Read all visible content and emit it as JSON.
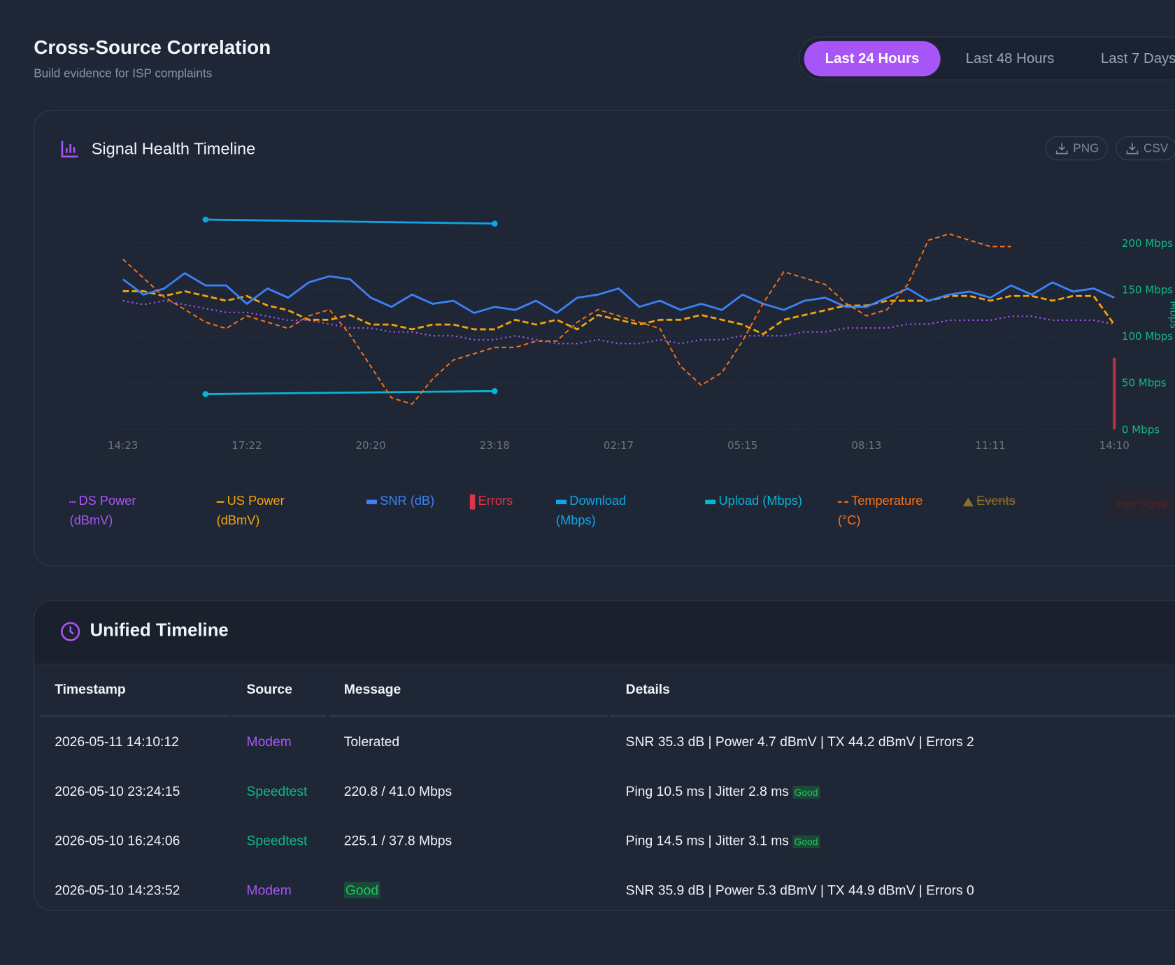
{
  "header": {
    "title": "Cross-Source Correlation",
    "subtitle": "Build evidence for ISP complaints"
  },
  "tabs": {
    "items": [
      "Last 24 Hours",
      "Last 48 Hours",
      "Last 7 Days"
    ],
    "active": 0
  },
  "chart_card": {
    "title": "Signal Health Timeline",
    "buttons": [
      "PNG",
      "CSV"
    ]
  },
  "chart_data": {
    "type": "line",
    "categories": [
      "14:23",
      null,
      null,
      null,
      null,
      null,
      "17:22",
      null,
      null,
      null,
      null,
      null,
      "20:20",
      null,
      null,
      null,
      null,
      null,
      "23:18",
      null,
      null,
      null,
      null,
      null,
      "02:17",
      null,
      null,
      null,
      null,
      null,
      "05:15",
      null,
      null,
      null,
      null,
      null,
      "08:13",
      null,
      null,
      null,
      null,
      null,
      "11:11",
      null,
      null,
      null,
      null,
      null,
      "14:10"
    ],
    "ylim": [
      0,
      230
    ],
    "yticks": [
      {
        "value": 0,
        "label": "0 Mbps"
      },
      {
        "value": 50,
        "label": "50 Mbps"
      },
      {
        "value": 100,
        "label": "100 Mbps"
      },
      {
        "value": 150,
        "label": "150 Mbps"
      },
      {
        "value": 200,
        "label": "200 Mbps"
      }
    ],
    "y_axis_side": "right",
    "y_label": "Mbps",
    "grid": true,
    "series": [
      {
        "name": "DS Power (dBmV)",
        "color": "#a855f7",
        "style": "dotted",
        "ylim": [
          2,
          7.5
        ],
        "values": [
          5.3,
          5.2,
          5.3,
          5.2,
          5.1,
          5.0,
          5.0,
          4.9,
          4.8,
          4.8,
          4.7,
          4.6,
          4.6,
          4.5,
          4.5,
          4.4,
          4.4,
          4.3,
          4.3,
          4.4,
          4.3,
          4.2,
          4.2,
          4.3,
          4.2,
          4.2,
          4.3,
          4.2,
          4.3,
          4.3,
          4.4,
          4.4,
          4.4,
          4.5,
          4.5,
          4.6,
          4.6,
          4.6,
          4.7,
          4.7,
          4.8,
          4.8,
          4.8,
          4.9,
          4.9,
          4.8,
          4.8,
          4.8,
          4.7
        ]
      },
      {
        "name": "US Power (dBmV)",
        "color": "#f5a30b",
        "style": "dashed",
        "ylim": [
          42,
          46.5
        ],
        "values": [
          44.9,
          44.9,
          44.8,
          44.9,
          44.8,
          44.7,
          44.8,
          44.6,
          44.5,
          44.3,
          44.3,
          44.4,
          44.2,
          44.2,
          44.1,
          44.2,
          44.2,
          44.1,
          44.1,
          44.3,
          44.2,
          44.3,
          44.1,
          44.4,
          44.3,
          44.2,
          44.3,
          44.3,
          44.4,
          44.3,
          44.2,
          44.0,
          44.3,
          44.4,
          44.5,
          44.6,
          44.6,
          44.7,
          44.7,
          44.7,
          44.8,
          44.8,
          44.7,
          44.8,
          44.8,
          44.7,
          44.8,
          44.8,
          44.2
        ]
      },
      {
        "name": "SNR (dB)",
        "color": "#3b82f6",
        "style": "solid",
        "ylim": [
          31,
          38
        ],
        "values": [
          35.9,
          35.4,
          35.6,
          36.1,
          35.7,
          35.7,
          35.1,
          35.6,
          35.3,
          35.8,
          36.0,
          35.9,
          35.3,
          35.0,
          35.4,
          35.1,
          35.2,
          34.8,
          35.0,
          34.9,
          35.2,
          34.8,
          35.3,
          35.4,
          35.6,
          35.0,
          35.2,
          34.9,
          35.1,
          34.9,
          35.4,
          35.1,
          34.9,
          35.2,
          35.3,
          35.0,
          35.0,
          35.3,
          35.6,
          35.2,
          35.4,
          35.5,
          35.3,
          35.7,
          35.4,
          35.8,
          35.5,
          35.6,
          35.3
        ]
      },
      {
        "name": "Errors",
        "color": "#dc3545",
        "style": "bar",
        "ylim": [
          0,
          6
        ],
        "values": [
          0,
          null,
          null,
          null,
          null,
          null,
          null,
          null,
          null,
          null,
          null,
          null,
          null,
          null,
          null,
          null,
          null,
          null,
          null,
          null,
          null,
          null,
          null,
          null,
          null,
          null,
          null,
          null,
          null,
          null,
          null,
          null,
          null,
          null,
          null,
          null,
          null,
          null,
          null,
          null,
          null,
          null,
          null,
          null,
          null,
          null,
          null,
          null,
          2
        ]
      },
      {
        "name": "Download (Mbps)",
        "color": "#0ea5e9",
        "style": "points",
        "axis": "y",
        "span_gaps": true,
        "values": [
          null,
          null,
          null,
          null,
          225.1,
          null,
          null,
          null,
          null,
          null,
          null,
          null,
          null,
          null,
          null,
          null,
          null,
          null,
          220.8,
          null,
          null,
          null,
          null,
          null,
          null,
          null,
          null,
          null,
          null,
          null,
          null,
          null,
          null,
          null,
          null,
          null,
          null,
          null,
          null,
          null,
          null,
          null,
          null,
          null,
          null,
          null,
          null,
          null,
          null
        ]
      },
      {
        "name": "Upload (Mbps)",
        "color": "#06b6d4",
        "style": "points",
        "axis": "y",
        "span_gaps": true,
        "values": [
          null,
          null,
          null,
          null,
          37.8,
          null,
          null,
          null,
          null,
          null,
          null,
          null,
          null,
          null,
          null,
          null,
          null,
          null,
          41.0,
          null,
          null,
          null,
          null,
          null,
          null,
          null,
          null,
          null,
          null,
          null,
          null,
          null,
          null,
          null,
          null,
          null,
          null,
          null,
          null,
          null,
          null,
          null,
          null,
          null,
          null,
          null,
          null,
          null,
          null
        ]
      },
      {
        "name": "Temperature (°C)",
        "color": "#f97316",
        "style": "dashed-thin",
        "ylim": [
          28,
          62
        ],
        "values": [
          55,
          52,
          49,
          47,
          45,
          44,
          46,
          45,
          44,
          46,
          47,
          43,
          38,
          33,
          32,
          36,
          39,
          40,
          41,
          41,
          42,
          42,
          45,
          47,
          46,
          45,
          44,
          38,
          35,
          37,
          42,
          48,
          53,
          52,
          51,
          48,
          46,
          47,
          51,
          58,
          59,
          58,
          57,
          57,
          null,
          null,
          null,
          null,
          null
        ]
      }
    ],
    "legend_extra": [
      {
        "name": "Events",
        "color": "#8b6f2e",
        "style": "struck"
      },
      {
        "name": "Poor Signal",
        "color": "#7f1d1d",
        "style": "faded"
      }
    ]
  },
  "timeline": {
    "title": "Unified Timeline",
    "columns": [
      "Timestamp",
      "Source",
      "Message",
      "Details"
    ],
    "rows": [
      {
        "timestamp": "2026-05-11 14:10:12",
        "source": "Modem",
        "source_color": "#a855f7",
        "message": "Tolerated",
        "details": "SNR 35.3 dB | Power 4.7 dBmV | TX 44.2 dBmV | Errors 2"
      },
      {
        "timestamp": "2026-05-10 23:24:15",
        "source": "Speedtest",
        "source_color": "#10b981",
        "message": "220.8 / 41.0 Mbps",
        "details": "Ping 10.5 ms | Jitter 2.8 ms",
        "badge": "Good"
      },
      {
        "timestamp": "2026-05-10 16:24:06",
        "source": "Speedtest",
        "source_color": "#10b981",
        "message": "225.1 / 37.8 Mbps",
        "details": "Ping 14.5 ms | Jitter 3.1 ms",
        "badge": "Good"
      },
      {
        "timestamp": "2026-05-10 14:23:52",
        "source": "Modem",
        "source_color": "#a855f7",
        "message": "Good",
        "message_badge": true,
        "details": "SNR 35.9 dB | Power 5.3 dBmV | TX 44.9 dBmV | Errors 0"
      }
    ]
  }
}
